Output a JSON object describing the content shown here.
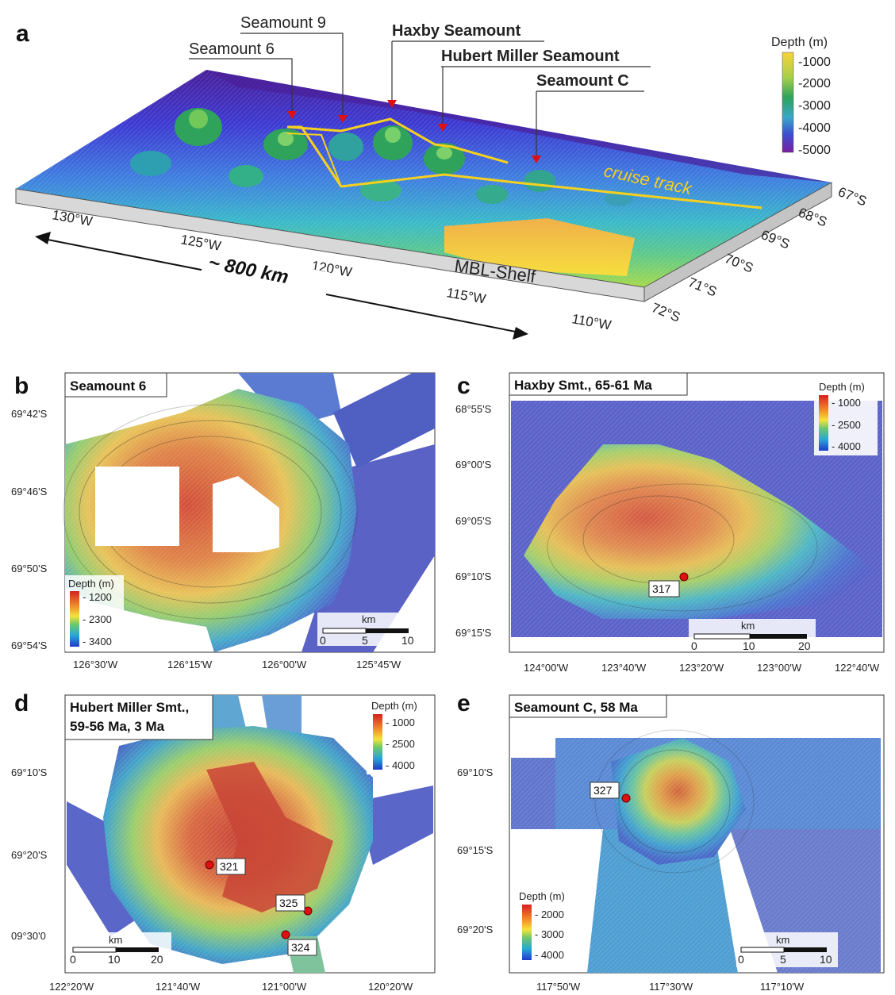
{
  "panel_a": {
    "letter": "a",
    "labels": {
      "seamount6": "Seamount 6",
      "seamount9": "Seamount 9",
      "haxby": "Haxby Seamount",
      "hubert": "Hubert Miller Seamount",
      "seamountC": "Seamount C"
    },
    "cruise_track": "cruise track",
    "shelf": "MBL-Shelf",
    "distance": "~ 800 km",
    "lon_ticks": [
      "130°W",
      "125°W",
      "120°W",
      "115°W",
      "110°W"
    ],
    "lat_ticks": [
      "67°S",
      "68°S",
      "69°S",
      "70°S",
      "71°S",
      "72°S"
    ],
    "legend_title": "Depth (m)",
    "legend_ticks": [
      "-1000",
      "-2000",
      "-3000",
      "-4000",
      "-5000"
    ],
    "colors": {
      "track": "#f5d020",
      "marker": "#e01010",
      "deep": "#5a1e9e",
      "shallow": "#f7d23a"
    }
  },
  "panel_b": {
    "letter": "b",
    "title": "Seamount 6",
    "lat_ticks": [
      "69°42'S",
      "69°46'S",
      "69°50'S",
      "69°54'S"
    ],
    "lon_ticks": [
      "126°30'W",
      "126°15'W",
      "126°00'W",
      "125°45'W"
    ],
    "legend_title": "Depth (m)",
    "legend_ticks": [
      "- 1200",
      "- 2300",
      "- 3400"
    ],
    "scale_unit": "km",
    "scale_ticks": [
      "0",
      "5",
      "10"
    ]
  },
  "panel_c": {
    "letter": "c",
    "title": "Haxby Smt., 65-61 Ma",
    "lat_ticks": [
      "68°55'S",
      "69°00'S",
      "69°05'S",
      "69°10'S",
      "69°15'S"
    ],
    "lon_ticks": [
      "124°00'W",
      "123°40'W",
      "123°20'W",
      "123°00'W",
      "122°40'W"
    ],
    "legend_title": "Depth (m)",
    "legend_ticks": [
      "- 1000",
      "- 2500",
      "- 4000"
    ],
    "scale_unit": "km",
    "scale_ticks": [
      "0",
      "10",
      "20"
    ],
    "samples": [
      "317"
    ]
  },
  "panel_d": {
    "letter": "d",
    "title_line1": "Hubert Miller Smt.,",
    "title_line2": "59-56 Ma, 3 Ma",
    "lat_ticks": [
      "69°10'S",
      "69°20'S",
      "09°30'0"
    ],
    "lon_ticks": [
      "122°20'W",
      "121°40'W",
      "121°00'W",
      "120°20'W"
    ],
    "legend_title": "Depth (m)",
    "legend_ticks": [
      "- 1000",
      "- 2500",
      "- 4000"
    ],
    "scale_unit": "km",
    "scale_ticks": [
      "0",
      "10",
      "20"
    ],
    "samples": [
      "321",
      "325",
      "324"
    ]
  },
  "panel_e": {
    "letter": "e",
    "title": "Seamount C, 58 Ma",
    "lat_ticks": [
      "69°10'S",
      "69°15'S",
      "69°20'S"
    ],
    "lon_ticks": [
      "117°50'W",
      "117°30'W",
      "117°10'W"
    ],
    "legend_title": "Depth (m)",
    "legend_ticks": [
      "- 2000",
      "- 3000",
      "- 4000"
    ],
    "scale_unit": "km",
    "scale_ticks": [
      "0",
      "5",
      "10"
    ],
    "samples": [
      "327"
    ]
  }
}
